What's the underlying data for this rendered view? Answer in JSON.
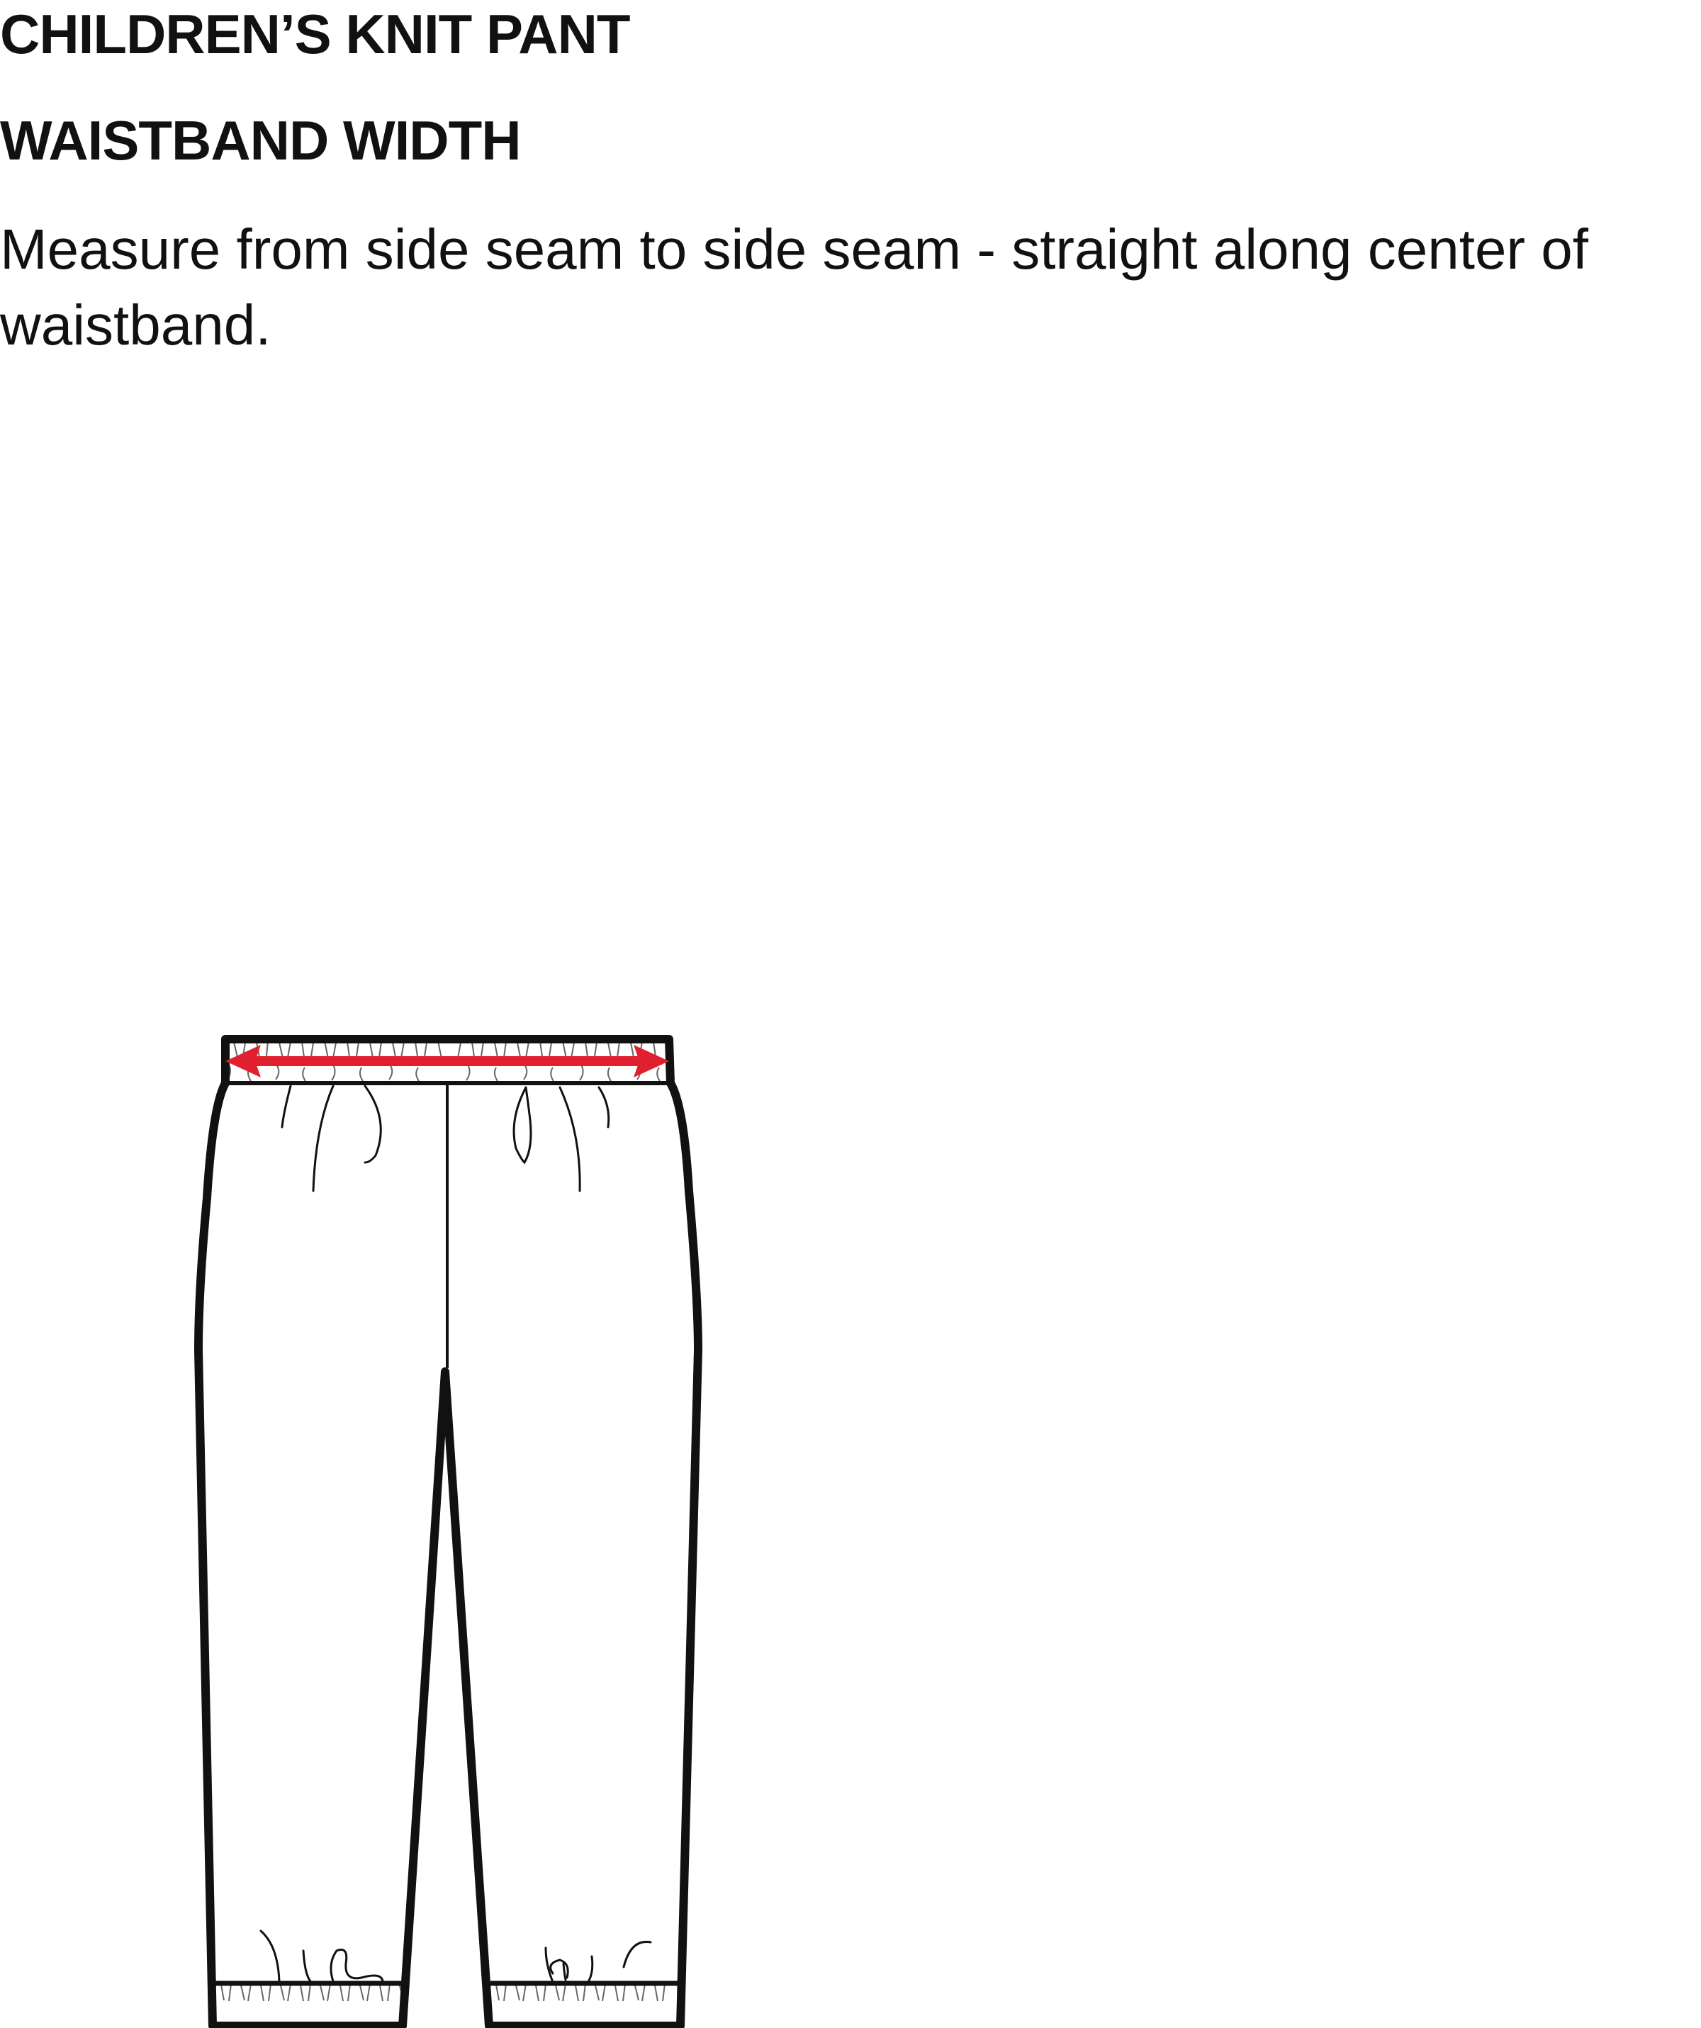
{
  "header": {
    "title": "CHILDREN’S KNIT PANT",
    "measurement_name": "WAISTBAND WIDTH",
    "instructions": "Measure from side seam to side seam - straight along center of waistband."
  },
  "figure": {
    "garment": "knit pant front view flat sketch",
    "measurement_arrow_color": "#e0202f",
    "outline_color": "#111111"
  }
}
